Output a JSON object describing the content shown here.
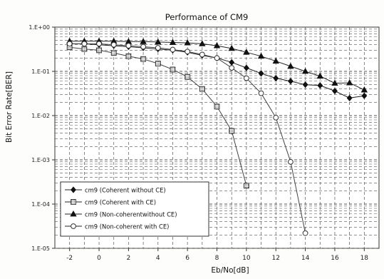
{
  "chart_data": {
    "type": "line",
    "title": "Performance of CM9",
    "xlabel": "Eb/No[dB]",
    "ylabel": "Bit Error Rate[BER]",
    "x_ticks": [
      "-2",
      "0",
      "2",
      "4",
      "6",
      "8",
      "10",
      "12",
      "14",
      "16",
      "18"
    ],
    "y_ticks": [
      "1.E+00",
      "1.E-01",
      "1.E-02",
      "1.E-03",
      "1.E-04",
      "1.E-05"
    ],
    "xlim": [
      -3,
      19
    ],
    "ylim": [
      1e-05,
      1
    ],
    "y_scale": "log",
    "grid": true,
    "legend_position": "bottom-left",
    "series": [
      {
        "name": "cm9 (Coherent without CE)",
        "marker": "diamond",
        "marker_fill": "filled",
        "x": [
          -2,
          -1,
          0,
          1,
          2,
          3,
          4,
          5,
          6,
          7,
          8,
          9,
          10,
          11,
          12,
          13,
          14,
          15,
          16,
          17,
          18
        ],
        "y": [
          0.42,
          0.42,
          0.4,
          0.38,
          0.36,
          0.34,
          0.32,
          0.3,
          0.27,
          0.23,
          0.2,
          0.16,
          0.12,
          0.09,
          0.07,
          0.06,
          0.05,
          0.048,
          0.036,
          0.025,
          0.028
        ]
      },
      {
        "name": "cm9 (Coherent with CE)",
        "marker": "square",
        "marker_fill": "hatched",
        "x": [
          -2,
          -1,
          0,
          1,
          2,
          3,
          4,
          5,
          6,
          7,
          8,
          9,
          10
        ],
        "y": [
          0.35,
          0.32,
          0.3,
          0.26,
          0.22,
          0.19,
          0.15,
          0.11,
          0.075,
          0.04,
          0.016,
          0.0045,
          0.00026
        ]
      },
      {
        "name": "cm9 (Non-coherentwithout CE)",
        "marker": "triangle",
        "marker_fill": "filled",
        "x": [
          -2,
          -1,
          0,
          1,
          2,
          3,
          4,
          5,
          6,
          7,
          8,
          9,
          10,
          11,
          12,
          13,
          14,
          15,
          16,
          17,
          18
        ],
        "y": [
          0.48,
          0.48,
          0.48,
          0.48,
          0.47,
          0.47,
          0.46,
          0.45,
          0.44,
          0.42,
          0.38,
          0.33,
          0.27,
          0.22,
          0.17,
          0.13,
          0.1,
          0.078,
          0.054,
          0.055,
          0.038
        ]
      },
      {
        "name": "cm9 (Non-coherent with CE)",
        "marker": "circle",
        "marker_fill": "open",
        "x": [
          -2,
          -1,
          0,
          1,
          2,
          3,
          4,
          5,
          6,
          7,
          8,
          9,
          10,
          11,
          12,
          13,
          14
        ],
        "y": [
          0.42,
          0.42,
          0.42,
          0.4,
          0.38,
          0.36,
          0.34,
          0.31,
          0.28,
          0.24,
          0.2,
          0.12,
          0.07,
          0.032,
          0.009,
          0.0009,
          2.2e-05
        ]
      }
    ]
  }
}
